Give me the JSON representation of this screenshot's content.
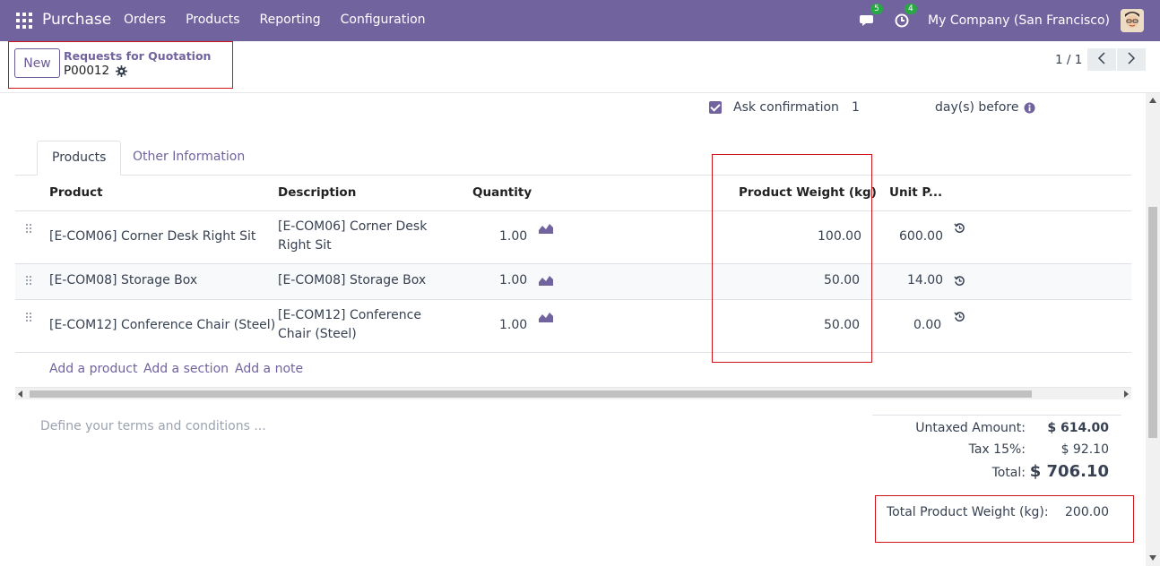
{
  "navbar": {
    "app_name": "Purchase",
    "menu": [
      "Orders",
      "Products",
      "Reporting",
      "Configuration"
    ],
    "messages_count": "5",
    "activities_count": "4",
    "company": "My Company (San Francisco)"
  },
  "control": {
    "new_label": "New",
    "breadcrumb_parent": "Requests for Quotation",
    "breadcrumb_current": "P00012",
    "pager": "1 / 1"
  },
  "form": {
    "ask_confirmation_label": "Ask confirmation",
    "ask_confirmation_value": "1",
    "days_before_label": "day(s) before"
  },
  "tabs": [
    "Products",
    "Other Information"
  ],
  "table": {
    "columns": [
      "Product",
      "Description",
      "Quantity",
      "Product Weight (kg)",
      "Unit P..."
    ],
    "rows": [
      {
        "product": "[E-COM06] Corner Desk Right Sit",
        "description_l1": "[E-COM06] Corner Desk",
        "description_l2": "Right Sit",
        "quantity": "1.00",
        "weight": "100.00",
        "unit_price": "600.00"
      },
      {
        "product": "[E-COM08] Storage Box",
        "description_l1": "[E-COM08] Storage Box",
        "description_l2": "",
        "quantity": "1.00",
        "weight": "50.00",
        "unit_price": "14.00"
      },
      {
        "product": "[E-COM12] Conference Chair (Steel)",
        "description_l1": "[E-COM12] Conference",
        "description_l2": "Chair (Steel)",
        "quantity": "1.00",
        "weight": "50.00",
        "unit_price": "0.00"
      }
    ],
    "add_product": "Add a product",
    "add_section": "Add a section",
    "add_note": "Add a note"
  },
  "terms_placeholder": "Define your terms and conditions ...",
  "totals": {
    "untaxed_label": "Untaxed Amount:",
    "untaxed_value": "$ 614.00",
    "tax_label": "Tax 15%:",
    "tax_value": "$ 92.10",
    "total_label": "Total:",
    "total_value": "$ 706.10",
    "weight_label": "Total Product Weight (kg):",
    "weight_value": "200.00"
  },
  "colors": {
    "brand": "#71639e",
    "highlight": "#d0121b"
  }
}
